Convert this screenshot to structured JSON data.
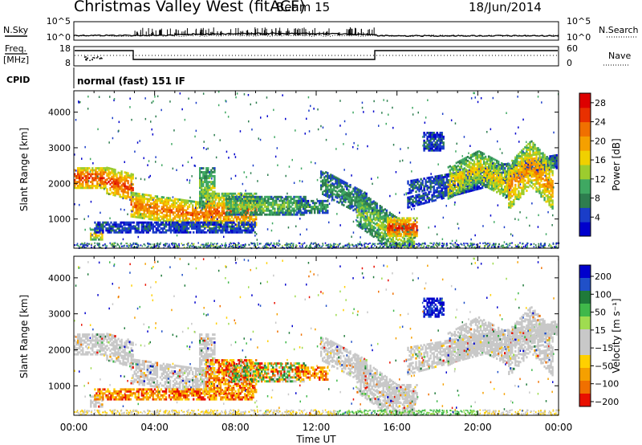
{
  "header": {
    "station": "Christmas Valley West (fitACF)",
    "beam": "Beam 15",
    "date": "18/Jun/2014"
  },
  "left_labels": {
    "nsky": "N.Sky",
    "freq": "Freq.",
    "freq_unit": "[MHz]",
    "cpid": "CPID"
  },
  "right_labels": {
    "nsearch": "N.Search",
    "nave": "Nave"
  },
  "cpid_text": "normal (fast) 151 IF",
  "noise_panel": {
    "yticks_left": [
      "10^5",
      "10^0"
    ],
    "yticks_right": [
      "10^5",
      "10^0"
    ]
  },
  "freq_panel": {
    "yticks_left": [
      "18",
      "8"
    ],
    "yticks_right": [
      "60",
      "0"
    ]
  },
  "colors": {
    "power": [
      "#0000cc",
      "#1a3dc8",
      "#2e7d4f",
      "#3fa862",
      "#9ccc2e",
      "#f0d000",
      "#f5a000",
      "#f07000",
      "#e83000",
      "#dd0000"
    ],
    "velocity": [
      "#0000cc",
      "#2050c8",
      "#1f7a3a",
      "#3fb84a",
      "#9fdc50",
      "#c8c8c8",
      "#c8c8c8",
      "#ffd000",
      "#f5a000",
      "#f07000",
      "#e81000"
    ],
    "background": "#ffffff"
  },
  "chart_data": [
    {
      "type": "heatmap",
      "name": "power",
      "ylabel": "Slant Range [km]",
      "yticks": [
        1000,
        2000,
        3000,
        4000
      ],
      "ylim": [
        180,
        4600
      ],
      "xlim": [
        0,
        24
      ],
      "xticks": [
        "00:00",
        "04:00",
        "08:00",
        "12:00",
        "16:00",
        "20:00",
        "00:00"
      ],
      "colorbar": {
        "label": "Power [dB]",
        "ticks": [
          "4",
          "8",
          "12",
          "16",
          "20",
          "24",
          "28"
        ],
        "range": [
          0,
          31
        ]
      }
    },
    {
      "type": "heatmap",
      "name": "velocity",
      "ylabel": "Slant Range [km]",
      "yticks": [
        1000,
        2000,
        3000,
        4000
      ],
      "ylim": [
        180,
        4600
      ],
      "xlim": [
        0,
        24
      ],
      "xticks": [
        "00:00",
        "04:00",
        "08:00",
        "12:00",
        "16:00",
        "20:00",
        "00:00"
      ],
      "xlabel": "Time UT",
      "colorbar": {
        "label": "Velocity [m s⁻¹]",
        "ticks": [
          "200",
          "100",
          "50",
          "15",
          "−15",
          "−50",
          "−100",
          "−200"
        ],
        "range": [
          -250,
          250
        ]
      }
    }
  ]
}
